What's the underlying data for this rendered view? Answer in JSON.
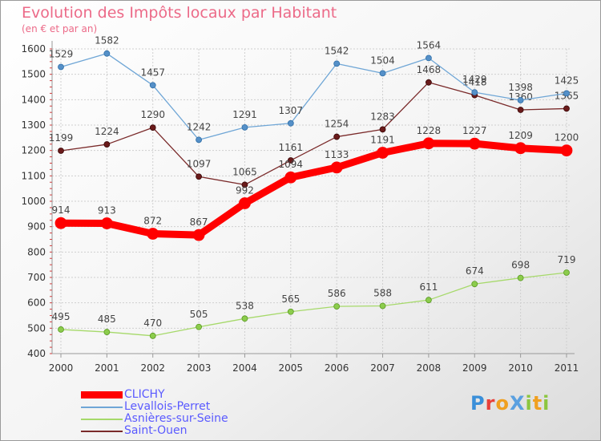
{
  "title": "Evolution des Impôts locaux par Habitant",
  "subtitle": "(en € et par an)",
  "logo": {
    "text": "ProXiti",
    "letters": [
      {
        "ch": "P",
        "color": "#3a8fd9"
      },
      {
        "ch": "r",
        "color": "#e8403a"
      },
      {
        "ch": "o",
        "color": "#f0a020"
      },
      {
        "ch": "X",
        "color": "#5aa0e0"
      },
      {
        "ch": "i",
        "color": "#8cc63f"
      },
      {
        "ch": "t",
        "color": "#f0a020"
      },
      {
        "ch": "i",
        "color": "#8cc63f"
      }
    ]
  },
  "chart_data": {
    "type": "line",
    "title": "Evolution des Impôts locaux par Habitant",
    "subtitle": "(en € et par an)",
    "xlabel": "",
    "ylabel": "",
    "ylim": [
      400,
      1600
    ],
    "yticks": [
      400,
      500,
      600,
      700,
      800,
      900,
      1000,
      1100,
      1200,
      1300,
      1400,
      1500,
      1600
    ],
    "categories": [
      "2000",
      "2001",
      "2002",
      "2003",
      "2004",
      "2005",
      "2006",
      "2007",
      "2008",
      "2009",
      "2010",
      "2011"
    ],
    "grid": true,
    "legend_position": "bottom-left",
    "series": [
      {
        "name": "CLICHY",
        "color": "#ff0000",
        "values": [
          914,
          913,
          872,
          867,
          992,
          1094,
          1133,
          1191,
          1228,
          1227,
          1209,
          1200
        ]
      },
      {
        "name": "Levallois-Perret",
        "color": "#6fa6d6",
        "values": [
          1529,
          1582,
          1457,
          1242,
          1291,
          1307,
          1542,
          1504,
          1564,
          1429,
          1398,
          1425
        ]
      },
      {
        "name": "Asnières-sur-Seine",
        "color": "#a6d96a",
        "values": [
          495,
          485,
          470,
          505,
          538,
          565,
          586,
          588,
          611,
          674,
          698,
          719
        ]
      },
      {
        "name": "Saint-Ouen",
        "color": "#7a2a2a",
        "values": [
          1199,
          1224,
          1290,
          1097,
          1065,
          1161,
          1254,
          1283,
          1468,
          1418,
          1360,
          1365
        ]
      }
    ]
  }
}
